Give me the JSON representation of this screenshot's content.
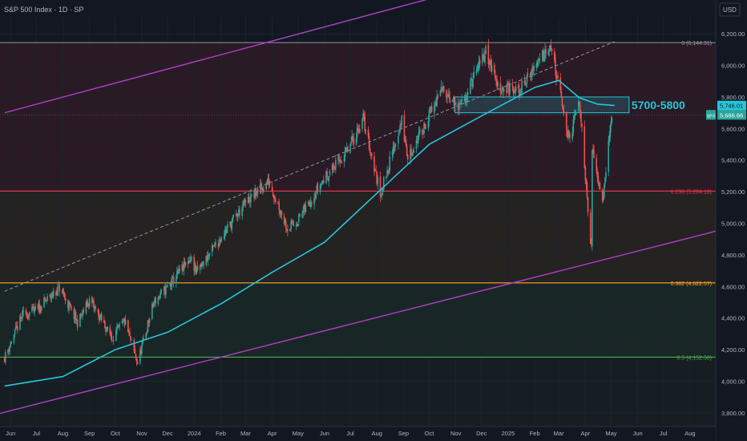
{
  "header": {
    "title": "S&P 500 Index · 1D · SP",
    "currency": "USD"
  },
  "colors": {
    "bg": "#131722",
    "grid": "#1e222d",
    "text": "#b2b5be",
    "up": "#26a69a",
    "down": "#ef5350",
    "ma": "#26c6da",
    "channel": "#b040c8",
    "zone": "#26c6da",
    "fib0": "#9598a1",
    "fib236": "#f23645",
    "fib382": "#ffa726",
    "fib5": "#4caf50"
  },
  "chart_data": {
    "type": "candlestick",
    "symbol": "SPX",
    "ylim": [
      3750,
      6300
    ],
    "y_ticks": [
      "6,200.00",
      "6,000.00",
      "5,800.00",
      "5,600.00",
      "5,400.00",
      "5,200.00",
      "5,000.00",
      "4,800.00",
      "4,600.00",
      "4,400.00",
      "4,200.00",
      "4,000.00",
      "3,800.00"
    ],
    "y_tick_values": [
      6200,
      6000,
      5800,
      5600,
      5400,
      5200,
      5000,
      4800,
      4600,
      4400,
      4200,
      4000,
      3800
    ],
    "x_labels": [
      "Jun",
      "Jul",
      "Aug",
      "Sep",
      "Oct",
      "Nov",
      "Dec",
      "2024",
      "Feb",
      "Mar",
      "Apr",
      "May",
      "Jun",
      "Jul",
      "Aug",
      "Sep",
      "Oct",
      "Nov",
      "Dec",
      "2025",
      "Feb",
      "Mar",
      "Apr",
      "May",
      "Jun",
      "Jul",
      "Aug"
    ],
    "x_label_dates": [
      "2023-06-01",
      "2023-07-01",
      "2023-08-01",
      "2023-09-01",
      "2023-10-01",
      "2023-11-01",
      "2023-12-01",
      "2024-01-01",
      "2024-02-01",
      "2024-03-01",
      "2024-04-01",
      "2024-05-01",
      "2024-06-01",
      "2024-07-01",
      "2024-08-01",
      "2024-09-01",
      "2024-10-01",
      "2024-11-01",
      "2024-12-01",
      "2025-01-01",
      "2025-02-01",
      "2025-03-01",
      "2025-04-01",
      "2025-05-01",
      "2025-06-01",
      "2025-07-01",
      "2025-08-01"
    ],
    "price_path": [
      [
        "2023-05-25",
        4150
      ],
      [
        "2023-06-15",
        4420
      ],
      [
        "2023-07-01",
        4450
      ],
      [
        "2023-07-28",
        4590
      ],
      [
        "2023-08-18",
        4370
      ],
      [
        "2023-09-01",
        4515
      ],
      [
        "2023-09-27",
        4275
      ],
      [
        "2023-10-12",
        4380
      ],
      [
        "2023-10-27",
        4115
      ],
      [
        "2023-11-15",
        4500
      ],
      [
        "2023-12-01",
        4595
      ],
      [
        "2023-12-28",
        4780
      ],
      [
        "2024-01-04",
        4690
      ],
      [
        "2024-02-01",
        4910
      ],
      [
        "2024-03-01",
        5130
      ],
      [
        "2024-03-28",
        5265
      ],
      [
        "2024-04-19",
        4970
      ],
      [
        "2024-05-01",
        5020
      ],
      [
        "2024-05-31",
        5280
      ],
      [
        "2024-06-28",
        5460
      ],
      [
        "2024-07-16",
        5665
      ],
      [
        "2024-08-05",
        5185
      ],
      [
        "2024-08-30",
        5650
      ],
      [
        "2024-09-06",
        5410
      ],
      [
        "2024-10-18",
        5865
      ],
      [
        "2024-11-04",
        5710
      ],
      [
        "2024-12-06",
        6090
      ],
      [
        "2024-12-20",
        5870
      ],
      [
        "2025-01-13",
        5830
      ],
      [
        "2025-02-19",
        6145
      ],
      [
        "2025-03-13",
        5520
      ],
      [
        "2025-03-25",
        5780
      ],
      [
        "2025-04-08",
        4835
      ],
      [
        "2025-04-09",
        5460
      ],
      [
        "2025-04-21",
        5160
      ],
      [
        "2025-05-02",
        5686
      ]
    ],
    "series": [
      {
        "name": "",
        "type": "moving-average",
        "points": [
          [
            "2023-05-25",
            3970
          ],
          [
            "2023-08-01",
            4030
          ],
          [
            "2023-10-01",
            4200
          ],
          [
            "2023-12-01",
            4310
          ],
          [
            "2024-02-01",
            4490
          ],
          [
            "2024-04-01",
            4690
          ],
          [
            "2024-06-01",
            4880
          ],
          [
            "2024-08-01",
            5190
          ],
          [
            "2024-10-01",
            5500
          ],
          [
            "2024-12-01",
            5680
          ],
          [
            "2025-02-01",
            5860
          ],
          [
            "2025-03-01",
            5905
          ],
          [
            "2025-03-25",
            5795
          ],
          [
            "2025-04-15",
            5755
          ],
          [
            "2025-05-05",
            5746
          ]
        ]
      }
    ],
    "fib_levels": [
      {
        "label": "0 (6,144.31)",
        "value": 6144.31
      },
      {
        "label": "0.236 (5,204.18)",
        "value": 5204.18
      },
      {
        "label": "0.382 (4,622.57)",
        "value": 4622.57
      },
      {
        "label": "0.5 (4,152.50)",
        "value": 4152.5
      }
    ],
    "channel": {
      "upper": [
        [
          "2023-05-25",
          5700
        ],
        [
          "2025-02-28",
          6640
        ]
      ],
      "lower": [
        [
          "2023-05-15",
          3790
        ],
        [
          "2025-08-31",
          4950
        ]
      ],
      "mid_dashed": [
        [
          "2023-05-25",
          4570
        ],
        [
          "2025-05-05",
          6150
        ]
      ]
    },
    "zone": {
      "label": "5700-5800",
      "from": "2024-10-31",
      "to": "2025-05-22",
      "low": 5700,
      "high": 5800
    },
    "last_price": {
      "label": "SPX",
      "value": "5,686.66",
      "y": 5686.66
    },
    "ma_last": {
      "value": "5,746.01",
      "y": 5746.01
    },
    "grid": true
  }
}
